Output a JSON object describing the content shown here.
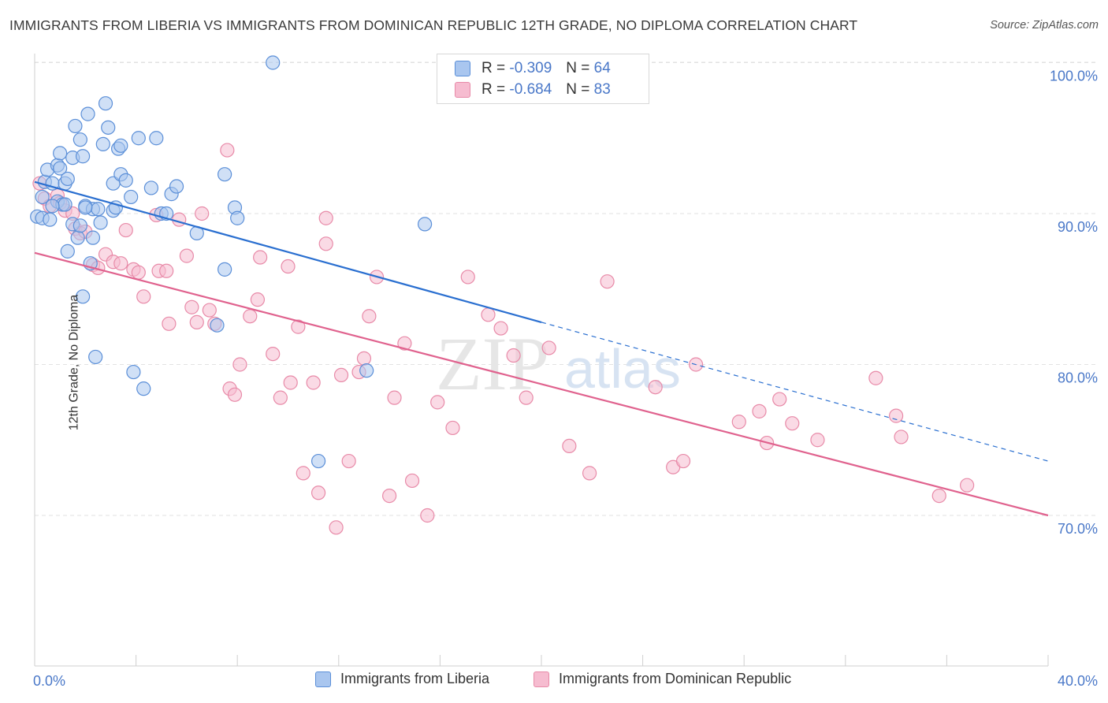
{
  "title": "IMMIGRANTS FROM LIBERIA VS IMMIGRANTS FROM DOMINICAN REPUBLIC 12TH GRADE, NO DIPLOMA CORRELATION CHART",
  "source": "Source: ZipAtlas.com",
  "watermark": {
    "zip": "ZIP",
    "atlas": "atlas"
  },
  "legend_top": [
    {
      "r_label": "R = ",
      "r_value": "-0.309",
      "n_label": "N = ",
      "n_value": "64"
    },
    {
      "r_label": "R = ",
      "r_value": "-0.684",
      "n_label": "N = ",
      "n_value": "83"
    }
  ],
  "colors": {
    "liberia_fill": "#a9c6ef",
    "liberia_stroke": "#5b8fd8",
    "liberia_line": "#2a6fd0",
    "dominican_fill": "#f6bcd0",
    "dominican_stroke": "#e88aa8",
    "dominican_line": "#e0628e",
    "tick_label": "#4a78c8",
    "grid": "#e2e2e2"
  },
  "chart_data": {
    "type": "scatter",
    "title": "IMMIGRANTS FROM LIBERIA VS IMMIGRANTS FROM DOMINICAN REPUBLIC 12TH GRADE, NO DIPLOMA CORRELATION CHART",
    "xlabel": "",
    "ylabel": "12th Grade, No Diploma",
    "xlim": [
      0,
      40
    ],
    "ylim": [
      60,
      102
    ],
    "x_tick_labels": [
      "0.0%",
      "40.0%"
    ],
    "y_ticks": [
      70,
      80,
      90,
      100
    ],
    "y_tick_labels": [
      "70.0%",
      "80.0%",
      "90.0%",
      "100.0%"
    ],
    "grid": true,
    "legend_position": "bottom",
    "series": [
      {
        "name": "Immigrants from Liberia",
        "R": -0.309,
        "N": 64,
        "trend": {
          "x": [
            0,
            20
          ],
          "y": [
            92.1,
            82.8
          ]
        },
        "trend_dashed": {
          "x": [
            20,
            40
          ],
          "y": [
            82.8,
            73.6
          ]
        },
        "points": [
          [
            0.1,
            89.8
          ],
          [
            0.3,
            89.7
          ],
          [
            0.3,
            91.1
          ],
          [
            0.4,
            92.1
          ],
          [
            0.5,
            92.9
          ],
          [
            0.6,
            89.6
          ],
          [
            0.7,
            92.0
          ],
          [
            0.9,
            93.2
          ],
          [
            0.9,
            90.8
          ],
          [
            1.0,
            93.0
          ],
          [
            1.0,
            94.0
          ],
          [
            1.1,
            90.6
          ],
          [
            1.2,
            92.0
          ],
          [
            1.3,
            87.5
          ],
          [
            1.3,
            92.3
          ],
          [
            1.5,
            89.3
          ],
          [
            1.5,
            93.7
          ],
          [
            1.6,
            95.8
          ],
          [
            1.7,
            88.4
          ],
          [
            1.8,
            89.2
          ],
          [
            1.8,
            94.9
          ],
          [
            1.9,
            84.5
          ],
          [
            1.9,
            93.8
          ],
          [
            2.0,
            90.5
          ],
          [
            2.1,
            96.6
          ],
          [
            2.2,
            86.7
          ],
          [
            2.3,
            88.4
          ],
          [
            2.3,
            90.3
          ],
          [
            2.4,
            80.5
          ],
          [
            2.5,
            90.3
          ],
          [
            2.6,
            89.4
          ],
          [
            2.7,
            94.6
          ],
          [
            2.8,
            97.3
          ],
          [
            2.9,
            95.7
          ],
          [
            3.1,
            90.2
          ],
          [
            3.1,
            92.0
          ],
          [
            3.3,
            94.3
          ],
          [
            3.4,
            92.6
          ],
          [
            3.4,
            94.5
          ],
          [
            3.6,
            92.2
          ],
          [
            3.8,
            91.1
          ],
          [
            3.9,
            79.5
          ],
          [
            4.1,
            95.0
          ],
          [
            4.3,
            78.4
          ],
          [
            4.6,
            91.7
          ],
          [
            4.8,
            95.0
          ],
          [
            5.0,
            90.0
          ],
          [
            5.2,
            90.0
          ],
          [
            5.4,
            91.3
          ],
          [
            5.6,
            91.8
          ],
          [
            6.4,
            88.7
          ],
          [
            7.2,
            82.6
          ],
          [
            7.5,
            92.6
          ],
          [
            7.5,
            86.3
          ],
          [
            7.9,
            90.4
          ],
          [
            8.0,
            89.7
          ],
          [
            9.4,
            100.0
          ],
          [
            11.2,
            73.6
          ],
          [
            13.1,
            79.6
          ],
          [
            15.4,
            89.3
          ],
          [
            1.2,
            90.6
          ],
          [
            2.0,
            90.4
          ],
          [
            3.2,
            90.4
          ],
          [
            0.7,
            90.5
          ]
        ]
      },
      {
        "name": "Immigrants from Dominican Republic",
        "R": -0.684,
        "N": 83,
        "trend": {
          "x": [
            0,
            40
          ],
          "y": [
            87.4,
            70.0
          ]
        },
        "points": [
          [
            0.2,
            92.0
          ],
          [
            0.4,
            91.0
          ],
          [
            0.6,
            90.5
          ],
          [
            0.9,
            91.2
          ],
          [
            1.0,
            90.7
          ],
          [
            1.2,
            90.2
          ],
          [
            1.5,
            90.0
          ],
          [
            1.6,
            89.0
          ],
          [
            1.8,
            88.7
          ],
          [
            2.0,
            88.8
          ],
          [
            2.3,
            86.6
          ],
          [
            2.5,
            86.4
          ],
          [
            2.8,
            87.3
          ],
          [
            3.1,
            86.8
          ],
          [
            3.4,
            86.7
          ],
          [
            3.6,
            88.9
          ],
          [
            3.9,
            86.3
          ],
          [
            4.1,
            86.1
          ],
          [
            4.3,
            84.5
          ],
          [
            4.8,
            89.9
          ],
          [
            4.9,
            86.2
          ],
          [
            5.2,
            86.2
          ],
          [
            5.3,
            82.7
          ],
          [
            5.7,
            89.6
          ],
          [
            6.0,
            87.2
          ],
          [
            6.2,
            83.8
          ],
          [
            6.4,
            82.8
          ],
          [
            6.6,
            90.0
          ],
          [
            6.9,
            83.6
          ],
          [
            7.1,
            82.7
          ],
          [
            7.6,
            94.2
          ],
          [
            7.7,
            78.4
          ],
          [
            7.9,
            78.0
          ],
          [
            8.1,
            80.0
          ],
          [
            8.5,
            83.2
          ],
          [
            8.8,
            84.3
          ],
          [
            8.9,
            87.1
          ],
          [
            9.4,
            80.7
          ],
          [
            9.7,
            77.8
          ],
          [
            10.0,
            86.5
          ],
          [
            10.1,
            78.8
          ],
          [
            10.4,
            82.5
          ],
          [
            10.6,
            72.8
          ],
          [
            11.0,
            78.8
          ],
          [
            11.2,
            71.5
          ],
          [
            11.5,
            89.7
          ],
          [
            11.5,
            88.0
          ],
          [
            11.9,
            69.2
          ],
          [
            12.1,
            79.3
          ],
          [
            12.4,
            73.6
          ],
          [
            12.8,
            79.5
          ],
          [
            13.0,
            80.4
          ],
          [
            13.2,
            83.2
          ],
          [
            13.5,
            85.8
          ],
          [
            14.0,
            71.3
          ],
          [
            14.2,
            77.8
          ],
          [
            14.6,
            81.4
          ],
          [
            14.9,
            72.3
          ],
          [
            15.5,
            70.0
          ],
          [
            15.9,
            77.5
          ],
          [
            16.5,
            75.8
          ],
          [
            17.1,
            85.8
          ],
          [
            17.9,
            83.3
          ],
          [
            18.4,
            82.4
          ],
          [
            18.9,
            80.6
          ],
          [
            19.4,
            77.8
          ],
          [
            20.3,
            81.1
          ],
          [
            21.1,
            74.6
          ],
          [
            21.9,
            72.8
          ],
          [
            22.6,
            85.5
          ],
          [
            24.5,
            78.5
          ],
          [
            25.2,
            73.2
          ],
          [
            25.6,
            73.6
          ],
          [
            26.1,
            80.0
          ],
          [
            27.8,
            76.2
          ],
          [
            28.6,
            76.9
          ],
          [
            28.9,
            74.8
          ],
          [
            29.4,
            77.7
          ],
          [
            29.9,
            76.1
          ],
          [
            30.9,
            75.0
          ],
          [
            33.2,
            79.1
          ],
          [
            34.0,
            76.6
          ],
          [
            34.2,
            75.2
          ],
          [
            35.7,
            71.3
          ],
          [
            36.8,
            72.0
          ]
        ]
      }
    ]
  },
  "legend_bottom": [
    "Immigrants from Liberia",
    "Immigrants from Dominican Republic"
  ]
}
